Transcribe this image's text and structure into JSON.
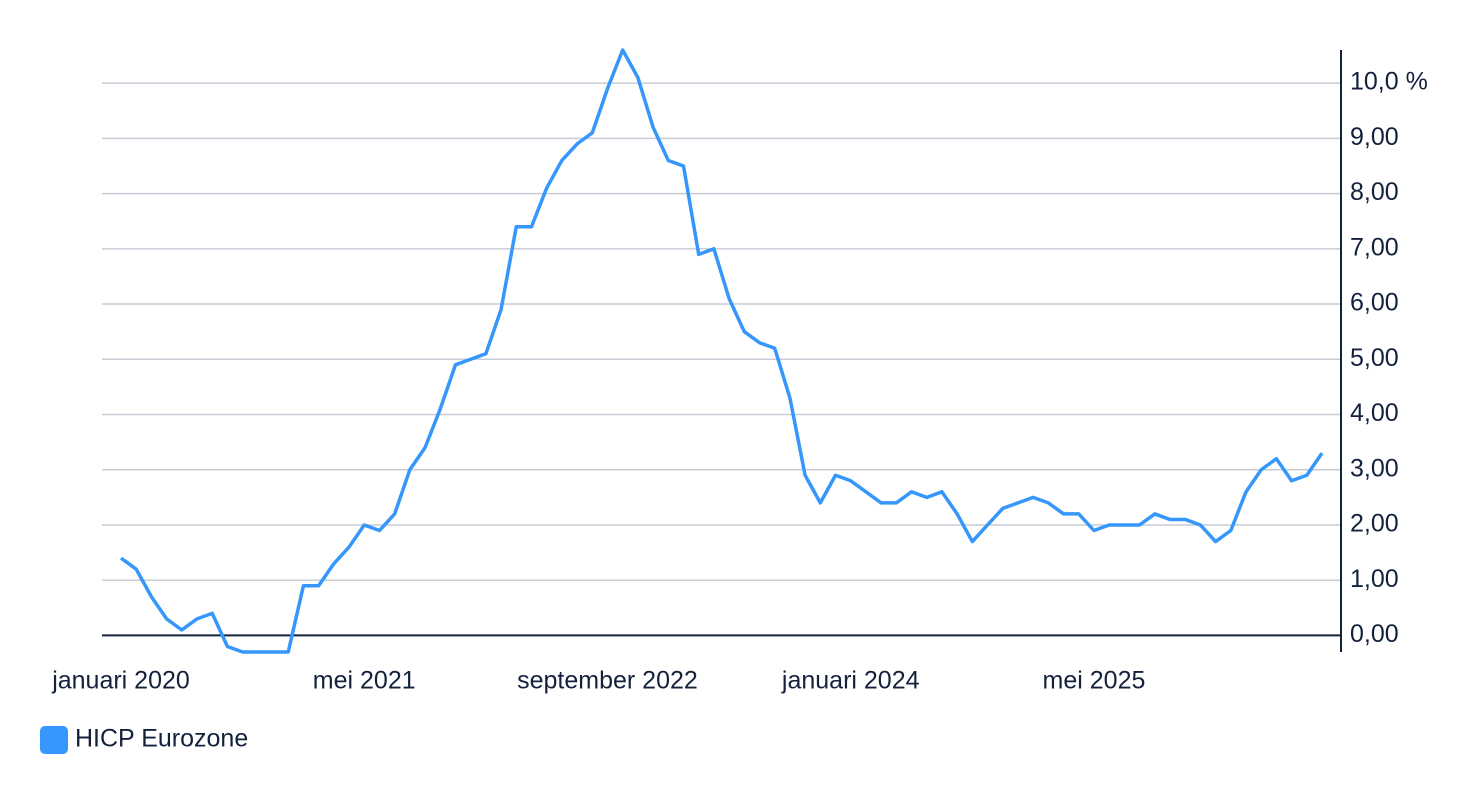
{
  "chart_data": {
    "type": "line",
    "categories": [
      "januari 2020",
      null,
      null,
      null,
      null,
      null,
      null,
      null,
      null,
      null,
      null,
      null,
      null,
      null,
      null,
      null,
      "mei 2021",
      null,
      null,
      null,
      null,
      null,
      null,
      null,
      null,
      null,
      null,
      null,
      null,
      null,
      null,
      null,
      "september 2022",
      null,
      null,
      null,
      null,
      null,
      null,
      null,
      null,
      null,
      null,
      null,
      null,
      null,
      null,
      null,
      "januari 2024",
      null,
      null,
      null,
      null,
      null,
      null,
      null,
      null,
      null,
      null,
      null,
      null,
      null,
      null,
      null,
      "mei 2025",
      null,
      null,
      null,
      null,
      null,
      null,
      null,
      null,
      null,
      null,
      null,
      null,
      null,
      null,
      null
    ],
    "series": [
      {
        "name": "HICP Eurozone",
        "color": "#3597fb",
        "values": [
          1.4,
          1.2,
          0.7,
          0.3,
          0.1,
          0.3,
          0.4,
          -0.2,
          -0.3,
          -0.3,
          -0.3,
          -0.3,
          0.9,
          0.9,
          1.3,
          1.6,
          2.0,
          1.9,
          2.2,
          3.0,
          3.4,
          4.1,
          4.9,
          5.0,
          5.1,
          5.9,
          7.4,
          7.4,
          8.1,
          8.6,
          8.9,
          9.1,
          9.9,
          10.6,
          10.1,
          9.2,
          8.6,
          8.5,
          6.9,
          7.0,
          6.1,
          5.5,
          5.3,
          5.2,
          4.3,
          2.9,
          2.4,
          2.9,
          2.8,
          2.6,
          2.4,
          2.4,
          2.6,
          2.5,
          2.6,
          2.2,
          1.7,
          2.0,
          2.3,
          2.4,
          2.5,
          2.4,
          2.2,
          2.2,
          1.9,
          2.0,
          2.0,
          2.0,
          2.2,
          2.1,
          2.1,
          2.0,
          1.7,
          1.9,
          2.6,
          3.0,
          3.2,
          2.8,
          2.9,
          3.3
        ]
      }
    ],
    "ylim": [
      -0.3,
      10.6
    ],
    "yticks": [
      {
        "value": 0,
        "label": "0,00"
      },
      {
        "value": 1,
        "label": "1,00"
      },
      {
        "value": 2,
        "label": "2,00"
      },
      {
        "value": 3,
        "label": "3,00"
      },
      {
        "value": 4,
        "label": "4,00"
      },
      {
        "value": 5,
        "label": "5,00"
      },
      {
        "value": 6,
        "label": "6,00"
      },
      {
        "value": 7,
        "label": "7,00"
      },
      {
        "value": 8,
        "label": "8,00"
      },
      {
        "value": 9,
        "label": "9,00"
      },
      {
        "value": 10,
        "label": "10,0 %"
      }
    ],
    "grid": true,
    "legend": "bottom-left"
  }
}
